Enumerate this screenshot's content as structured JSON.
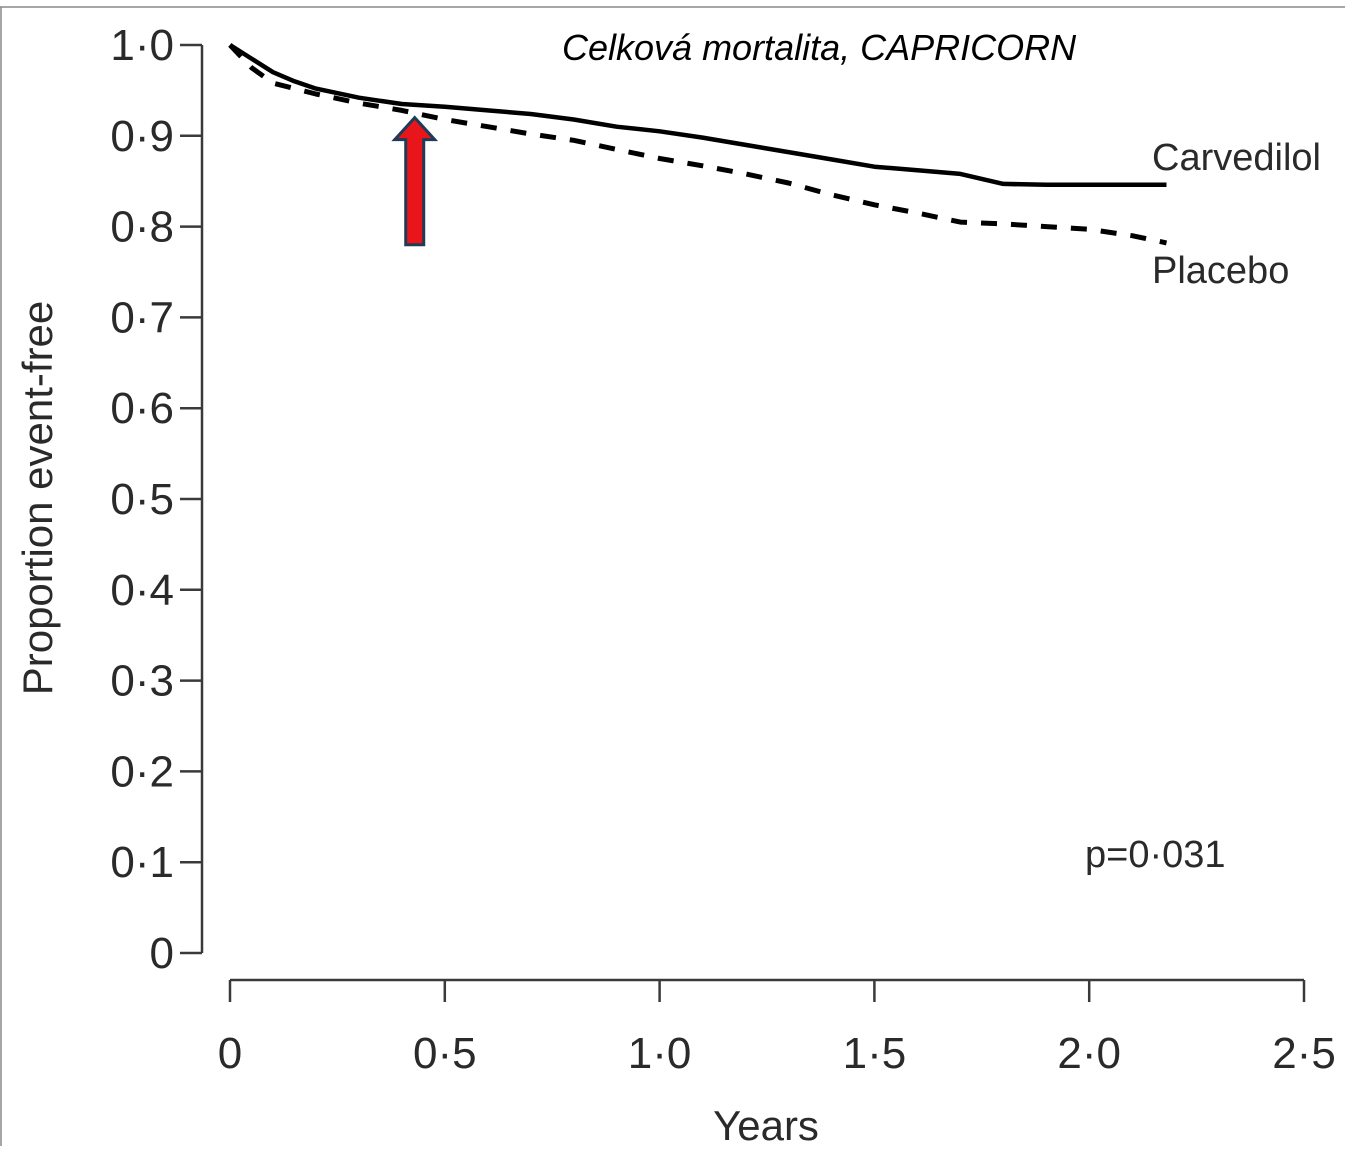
{
  "chart_data": {
    "type": "line",
    "title": "Celková mortalita, CAPRICORN",
    "xlabel": "Years",
    "ylabel": "Proportion event-free",
    "xlim": [
      0,
      2.5
    ],
    "ylim": [
      0,
      1.0
    ],
    "x_ticks": [
      "0",
      "0·5",
      "1·0",
      "1·5",
      "2·0",
      "2·5"
    ],
    "x_tick_values": [
      0,
      0.5,
      1.0,
      1.5,
      2.0,
      2.5
    ],
    "y_ticks": [
      "0",
      "0·1",
      "0·2",
      "0·3",
      "0·4",
      "0·5",
      "0·6",
      "0·7",
      "0·8",
      "0·9",
      "1·0"
    ],
    "y_tick_values": [
      0,
      0.1,
      0.2,
      0.3,
      0.4,
      0.5,
      0.6,
      0.7,
      0.8,
      0.9,
      1.0
    ],
    "grid": false,
    "series": [
      {
        "name": "Carvedilol",
        "line_style": "solid",
        "color": "#000000",
        "x": [
          0,
          0.05,
          0.1,
          0.15,
          0.2,
          0.3,
          0.4,
          0.5,
          0.6,
          0.7,
          0.8,
          0.9,
          1.0,
          1.1,
          1.2,
          1.3,
          1.4,
          1.5,
          1.6,
          1.7,
          1.8,
          1.9,
          2.0,
          2.1,
          2.18
        ],
        "y": [
          1.0,
          0.985,
          0.97,
          0.96,
          0.952,
          0.942,
          0.935,
          0.932,
          0.928,
          0.924,
          0.918,
          0.91,
          0.905,
          0.898,
          0.89,
          0.882,
          0.874,
          0.866,
          0.862,
          0.858,
          0.847,
          0.846,
          0.846,
          0.846,
          0.846
        ]
      },
      {
        "name": "Placebo",
        "line_style": "dashed",
        "color": "#000000",
        "x": [
          0,
          0.05,
          0.1,
          0.2,
          0.3,
          0.4,
          0.5,
          0.6,
          0.7,
          0.8,
          0.9,
          1.0,
          1.1,
          1.2,
          1.3,
          1.4,
          1.5,
          1.6,
          1.7,
          1.8,
          1.9,
          2.0,
          2.1,
          2.18
        ],
        "y": [
          1.0,
          0.975,
          0.958,
          0.946,
          0.936,
          0.928,
          0.918,
          0.91,
          0.902,
          0.895,
          0.885,
          0.875,
          0.867,
          0.858,
          0.848,
          0.835,
          0.824,
          0.815,
          0.805,
          0.803,
          0.8,
          0.797,
          0.79,
          0.782
        ]
      }
    ],
    "series_labels": [
      "Carvedilol",
      "Placebo"
    ],
    "annotations": [
      {
        "text": "p=0·031"
      }
    ],
    "arrow": {
      "x": 0.43,
      "y_tip": 0.92,
      "y_base": 0.78,
      "color": "#e8161a",
      "outline": "#1f3b57"
    }
  }
}
